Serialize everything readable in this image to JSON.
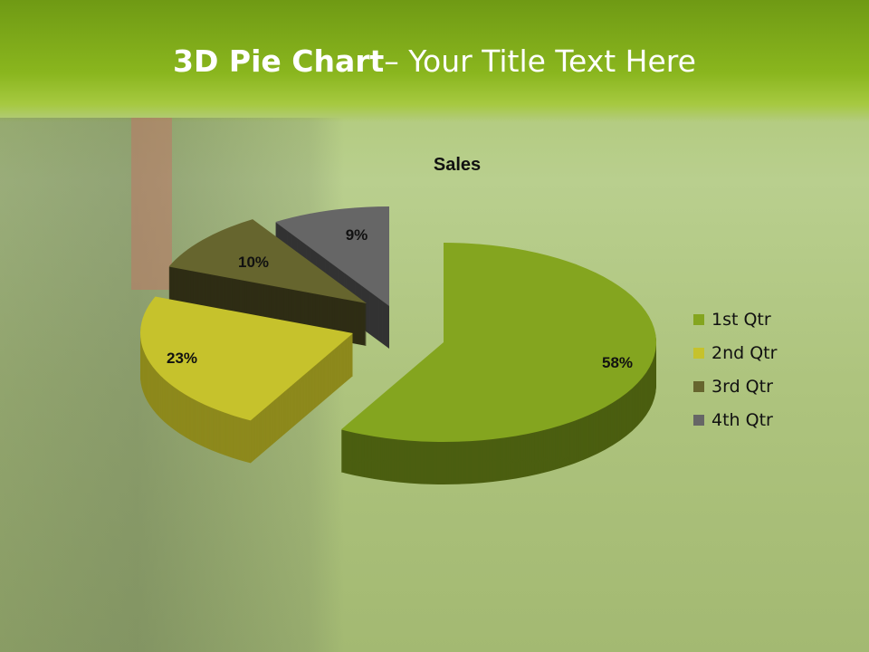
{
  "slide": {
    "title_bold": "3D Pie Chart",
    "title_rest": "– Your Title Text Here"
  },
  "chart_data": {
    "type": "pie",
    "style": "3d-exploded",
    "title": "Sales",
    "categories": [
      "1st Qtr",
      "2nd Qtr",
      "3rd Qtr",
      "4th Qtr"
    ],
    "values": [
      58,
      23,
      10,
      9
    ],
    "data_labels": [
      "58%",
      "23%",
      "10%",
      "9%"
    ],
    "colors": [
      "#84a51f",
      "#c6c22c",
      "#66652e",
      "#666666"
    ],
    "side_colors": [
      "#4b5e10",
      "#8d891c",
      "#2e2d14",
      "#333333"
    ],
    "legend_position": "right"
  }
}
